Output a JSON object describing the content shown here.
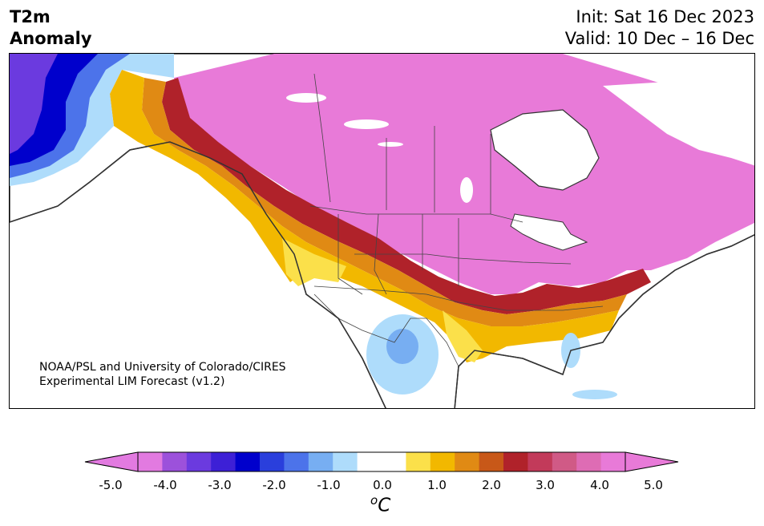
{
  "header": {
    "variable": "T2m",
    "field": "Anomaly",
    "init": "Init: Sat 16 Dec 2023",
    "valid": "Valid: 10 Dec – 16 Dec"
  },
  "credit": {
    "line1": "NOAA/PSL and University of Colorado/CIRES",
    "line2": "Experimental LIM Forecast (v1.2)"
  },
  "colorbar": {
    "unit_base": "C",
    "unit_sup": "o",
    "tick_labels": [
      "-5.0",
      "-4.0",
      "-3.0",
      "-2.0",
      "-1.0",
      "0.0",
      "1.0",
      "2.0",
      "3.0",
      "4.0",
      "5.0"
    ],
    "colors": [
      "#e27ae0",
      "#9c51db",
      "#6b3adf",
      "#3d20d6",
      "#0000cc",
      "#2a3fdc",
      "#4c73ea",
      "#77aef2",
      "#aedcfb",
      "#ffffff",
      "#ffffff",
      "#fbe04a",
      "#f2b800",
      "#e08a14",
      "#c85818",
      "#b0222a",
      "#c23a5a",
      "#d05a86",
      "#de6cb4",
      "#e87ad8"
    ]
  },
  "map": {
    "region": "North America",
    "palette": {
      "ocean": "#ffffff",
      "land_neutral": "#ffffff",
      "pink_warm": "#e87ad8",
      "crimson": "#b0222a",
      "orange": "#e08a14",
      "gold": "#f2b800",
      "yellow": "#fbe04a",
      "light_blue": "#aedcfb",
      "mid_blue": "#77aef2",
      "deep_blue": "#0000cc",
      "coast": "#333333"
    }
  }
}
